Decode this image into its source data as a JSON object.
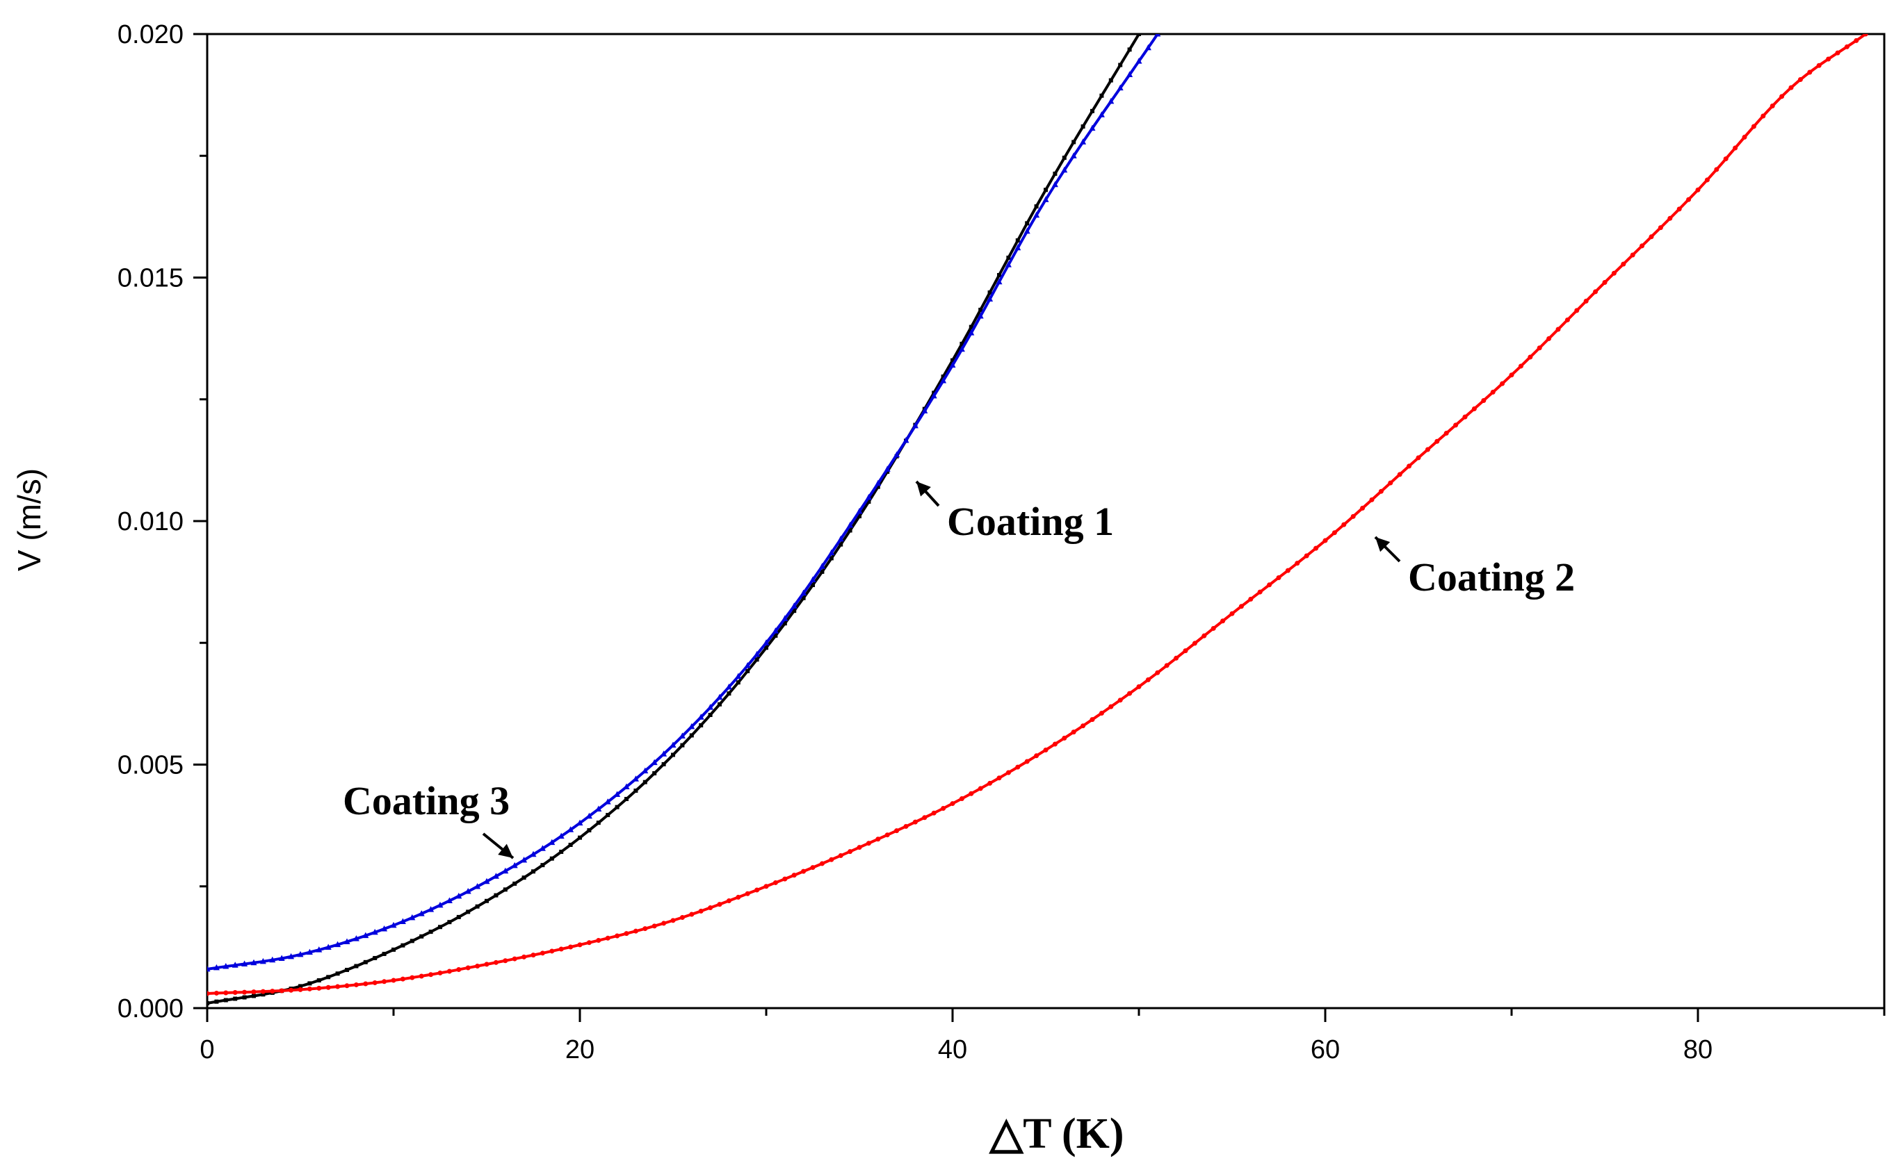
{
  "chart_data": {
    "type": "line",
    "title": "",
    "xlabel": "△T (K)",
    "ylabel": "V (m/s)",
    "xlim": [
      0,
      90
    ],
    "ylim": [
      0,
      0.02
    ],
    "xticks": [
      0,
      20,
      40,
      60,
      80
    ],
    "xtick_labels": [
      "0",
      "20",
      "40",
      "60",
      "80"
    ],
    "yticks": [
      0,
      0.005,
      0.01,
      0.015,
      0.02
    ],
    "ytick_labels": [
      "0.000",
      "0.005",
      "0.010",
      "0.015",
      "0.020"
    ],
    "grid": false,
    "series": [
      {
        "name": "Coating 1",
        "color": "#000000",
        "marker": "square",
        "x": [
          0,
          5,
          10,
          15,
          20,
          25,
          30,
          35,
          40,
          45,
          50
        ],
        "y": [
          0.0001,
          0.00045,
          0.0012,
          0.0022,
          0.0035,
          0.0052,
          0.0074,
          0.0101,
          0.0133,
          0.0168,
          0.02
        ]
      },
      {
        "name": "Coating 2",
        "color": "#ff0000",
        "marker": "circle",
        "x": [
          0,
          5,
          10,
          15,
          20,
          25,
          30,
          35,
          40,
          45,
          50,
          55,
          60,
          65,
          70,
          75,
          80,
          85,
          89
        ],
        "y": [
          0.0003,
          0.00038,
          0.00057,
          0.0009,
          0.0013,
          0.0018,
          0.0025,
          0.0033,
          0.0042,
          0.0053,
          0.0066,
          0.0081,
          0.0096,
          0.0113,
          0.013,
          0.0149,
          0.0168,
          0.0189,
          0.02
        ]
      },
      {
        "name": "Coating 3",
        "color": "#0000dd",
        "marker": "triangle",
        "x": [
          0,
          5,
          10,
          15,
          20,
          25,
          30,
          35,
          40,
          45,
          51
        ],
        "y": [
          0.0008,
          0.0011,
          0.0017,
          0.0026,
          0.0038,
          0.0054,
          0.0075,
          0.0102,
          0.0132,
          0.0166,
          0.02
        ]
      }
    ],
    "annotations": [
      {
        "text": "Coating 1",
        "x": 38,
        "y": 0.0108
      },
      {
        "text": "Coating 2",
        "x": 62.5,
        "y": 0.0097
      },
      {
        "text": "Coating 3",
        "x": 16.5,
        "y": 0.003
      }
    ]
  }
}
